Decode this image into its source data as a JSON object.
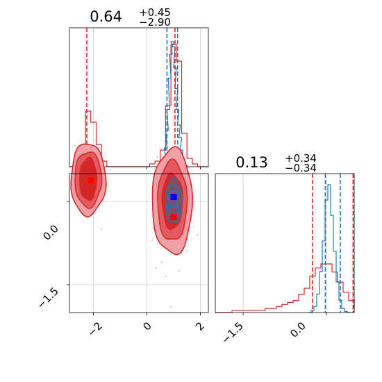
{
  "chart_data": {
    "type": "corner",
    "parameters": [
      {
        "title_main": "0.64",
        "title_sup": "+0.45",
        "title_sub": "−2.90",
        "range": [
          -2.9,
          2.3
        ],
        "ticks": [
          {
            "value": -2,
            "label": "−2"
          },
          {
            "value": 0,
            "label": "0"
          },
          {
            "value": 2,
            "label": "2"
          }
        ]
      },
      {
        "title_main": "0.13",
        "title_sup": "+0.34",
        "title_sub": "−0.34",
        "range": [
          -2.0,
          0.5
        ],
        "ticks": [
          {
            "value": -1.5,
            "label": "−1.5"
          },
          {
            "value": 0.0,
            "label": "0.0"
          }
        ]
      }
    ],
    "colors": {
      "blue": "#1f77b4",
      "red": "#d62728",
      "grid": "#cccccc"
    },
    "hist_param1": {
      "bins": [
        -2.9,
        -2.7,
        -2.5,
        -2.3,
        -2.1,
        -1.9,
        -1.7,
        -1.5,
        -1.3,
        -1.1,
        -0.9,
        -0.7,
        -0.5,
        -0.3,
        -0.1,
        0.1,
        0.3,
        0.5,
        0.7,
        0.9,
        1.1,
        1.3,
        1.5,
        1.7,
        1.9,
        2.1,
        2.3
      ],
      "red_counts": [
        0,
        0,
        4,
        20,
        16,
        8,
        2,
        0,
        0,
        0,
        0,
        0,
        0,
        0,
        0,
        1,
        2,
        6,
        22,
        44,
        38,
        12,
        3,
        1,
        0,
        0
      ],
      "blue_x": [
        0.4,
        0.5,
        0.55,
        0.6,
        0.65,
        0.7,
        0.75,
        0.8,
        0.85,
        0.9,
        0.95,
        1.0,
        1.05,
        1.1,
        1.15,
        1.2,
        1.25,
        1.3,
        1.35,
        1.4,
        1.45,
        1.5
      ],
      "blue_counts": [
        0,
        1,
        2,
        3,
        8,
        18,
        35,
        55,
        85,
        108,
        120,
        115,
        95,
        75,
        55,
        40,
        28,
        16,
        8,
        3,
        1,
        0
      ],
      "blue_quantiles": [
        0.75,
        1.15
      ],
      "red_quantiles": [
        -2.25,
        1.05
      ]
    },
    "hist_param2": {
      "bins": [
        -2.0,
        -1.9,
        -1.8,
        -1.7,
        -1.6,
        -1.5,
        -1.4,
        -1.3,
        -1.2,
        -1.1,
        -1.0,
        -0.9,
        -0.8,
        -0.7,
        -0.6,
        -0.5,
        -0.4,
        -0.3,
        -0.2,
        -0.1,
        0.0,
        0.1,
        0.2,
        0.3,
        0.4,
        0.5
      ],
      "red_counts": [
        0,
        0,
        0,
        1,
        1,
        1,
        1,
        1,
        1,
        2,
        2,
        3,
        4,
        5,
        6,
        9,
        12,
        18,
        22,
        24,
        24,
        20,
        15,
        10,
        6
      ],
      "blue_x": [
        -0.3,
        -0.25,
        -0.2,
        -0.15,
        -0.1,
        -0.05,
        0.0,
        0.05,
        0.1,
        0.15,
        0.2,
        0.25,
        0.3,
        0.35,
        0.4
      ],
      "blue_counts": [
        0,
        2,
        6,
        18,
        40,
        70,
        110,
        125,
        95,
        60,
        30,
        12,
        4,
        1,
        0
      ],
      "blue_quantiles": [
        -0.02,
        0.25
      ],
      "red_quantiles": [
        -0.25,
        0.48
      ]
    },
    "joint": {
      "red_blobs": [
        {
          "cx": -2.2,
          "cy": 0.4,
          "levels": [
            [
              0.65,
              0.65
            ],
            [
              0.5,
              0.5
            ],
            [
              0.32,
              0.38
            ]
          ]
        },
        {
          "cx": 0.95,
          "cy": 0.0,
          "levels": [
            [
              0.75,
              0.95
            ],
            [
              0.55,
              0.72
            ],
            [
              0.38,
              0.5
            ]
          ]
        }
      ],
      "blue_blob": {
        "cx": 1.0,
        "cy": 0.0,
        "levels": [
          [
            0.3,
            0.4
          ],
          [
            0.22,
            0.3
          ],
          [
            0.14,
            0.2
          ],
          [
            0.07,
            0.1
          ]
        ]
      },
      "red_markers": [
        {
          "x": -2.1,
          "y": 0.38
        },
        {
          "x": 1.0,
          "y": -0.28
        }
      ],
      "blue_marker": {
        "x": 1.0,
        "y": 0.08
      },
      "scatter_points": [
        {
          "x": 0.35,
          "y": -1.2
        },
        {
          "x": 0.55,
          "y": -1.1
        },
        {
          "x": 0.7,
          "y": -1.35
        },
        {
          "x": 1.2,
          "y": -1.25
        },
        {
          "x": 1.5,
          "y": -0.9
        },
        {
          "x": 0.2,
          "y": -0.7
        },
        {
          "x": 1.9,
          "y": -0.6
        },
        {
          "x": 1.6,
          "y": 0.6
        },
        {
          "x": -2.7,
          "y": 1.0
        },
        {
          "x": -1.7,
          "y": -0.5
        },
        {
          "x": 0.9,
          "y": -1.9
        },
        {
          "x": 0.4,
          "y": 0.8
        }
      ],
      "xrange": [
        -2.9,
        2.3
      ],
      "yrange": [
        -2.0,
        0.5
      ]
    }
  }
}
